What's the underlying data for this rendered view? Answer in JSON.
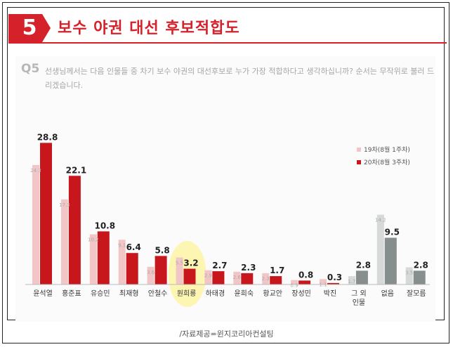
{
  "header": {
    "number": "5",
    "title": "보수 야권 대선 후보적합도"
  },
  "question": {
    "label": "Q5",
    "text": "선생님께서는 다음 인물들 중 차기 보수 야권의 대선후보로 누가 가장 적합하다고 생각하십니까? 순서는 무작위로 불러 드리겠습니다."
  },
  "source": "/자료제공=윈지코리아컨설팅",
  "chart_data": {
    "type": "bar",
    "categories": [
      "윤석열",
      "홍준표",
      "유승민",
      "최재형",
      "안철수",
      "원희룡",
      "하태경",
      "윤희숙",
      "황교안",
      "장성민",
      "박진",
      "그 외 인물",
      "없음",
      "잘모름"
    ],
    "series": [
      {
        "name": "19차(8월 1주차)",
        "values": [
          24.3,
          17.3,
          10.2,
          9.1,
          3.6,
          5.5,
          2.9,
          2.6,
          2.3,
          0.9,
          1.1,
          1.7,
          14.2,
          3.5
        ],
        "color": "#f2c6c6"
      },
      {
        "name": "20차(8월 3주차)",
        "values": [
          28.8,
          22.1,
          10.8,
          6.4,
          5.8,
          3.2,
          2.7,
          2.3,
          1.7,
          0.8,
          0.3,
          2.8,
          9.5,
          2.8
        ],
        "color": "#c8161d"
      }
    ],
    "gray_categories": [
      "그 외 인물",
      "없음",
      "잘모름"
    ],
    "gray_colors": {
      "old": "#d7d9d9",
      "new": "#868e8e"
    },
    "highlight_category": "원희룡",
    "highlight_color": "#fff176",
    "ylim": [
      0,
      32
    ]
  }
}
